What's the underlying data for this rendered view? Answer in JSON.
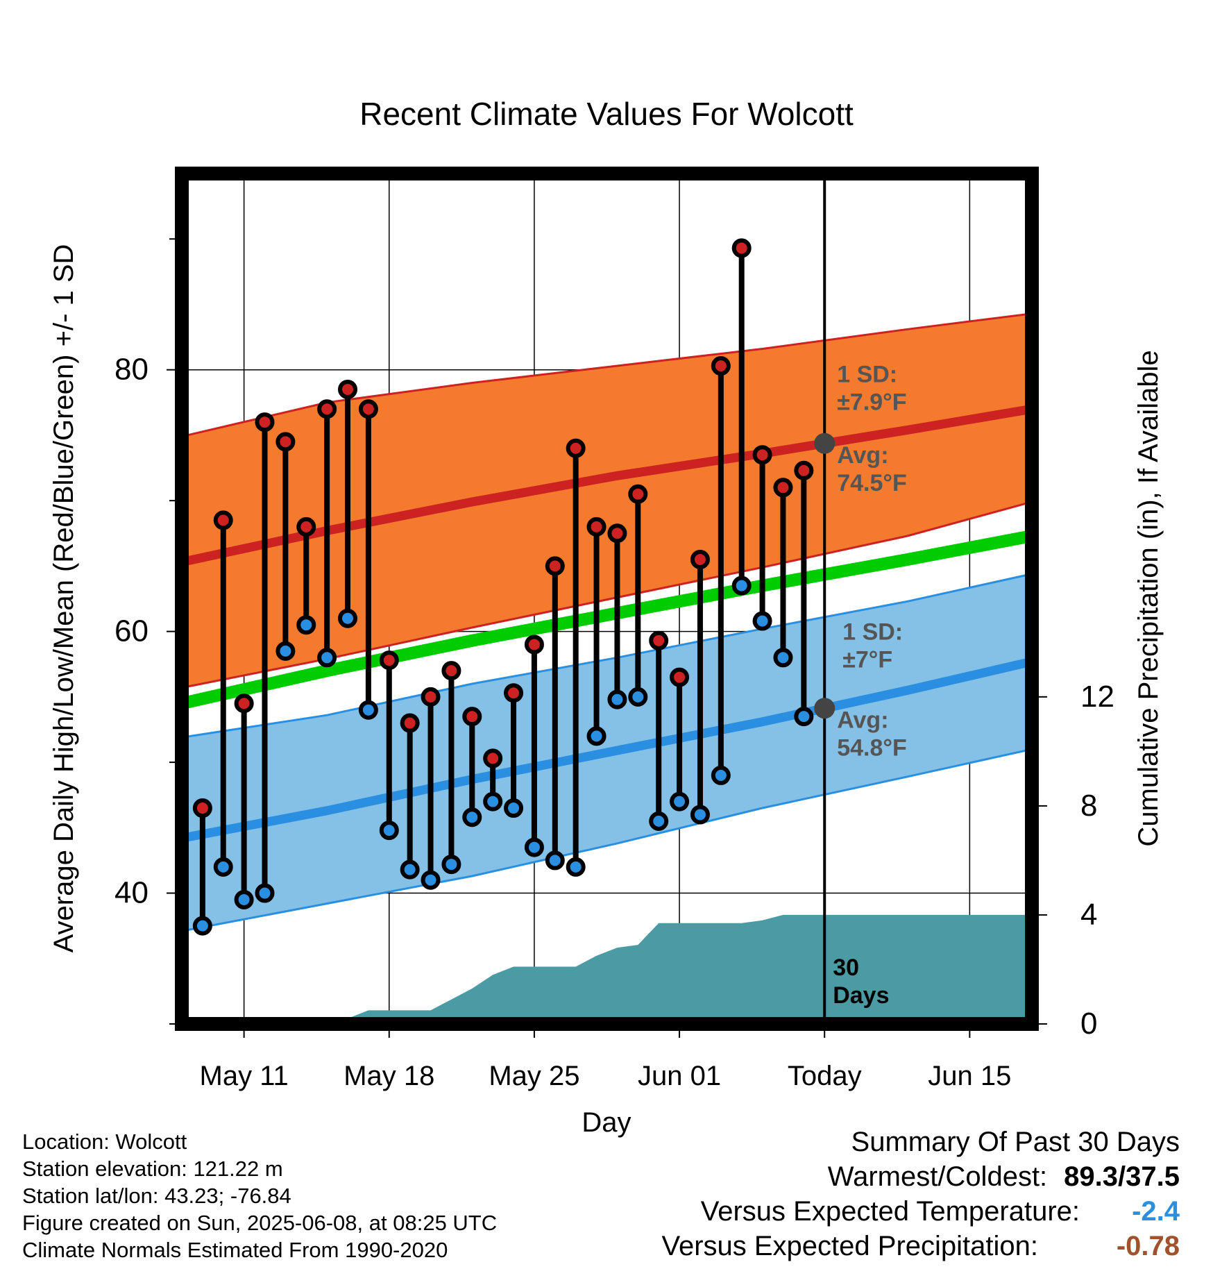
{
  "chart_data": {
    "type": "line",
    "title": "Recent Climate Values For Wolcott",
    "xlabel": "Day",
    "ylabel": "Average Daily High/Low/Mean (Red/Blue/Green) +/- 1 SD",
    "y2label": "Cumulative Precipitation (in), If Available",
    "xlim": [
      "2025-05-08",
      "2025-06-18"
    ],
    "ylim": [
      30,
      95
    ],
    "y2lim": [
      0,
      31.2
    ],
    "x_ticks": [
      {
        "date": "2025-05-11",
        "label": "May 11"
      },
      {
        "date": "2025-05-18",
        "label": "May 18"
      },
      {
        "date": "2025-05-25",
        "label": "May 25"
      },
      {
        "date": "2025-06-01",
        "label": "Jun 01"
      },
      {
        "date": "2025-06-08",
        "label": "Today"
      },
      {
        "date": "2025-06-15",
        "label": "Jun 15"
      }
    ],
    "y_ticks": [
      {
        "value": 40,
        "label": "40"
      },
      {
        "value": 60,
        "label": "60"
      },
      {
        "value": 80,
        "label": "80"
      }
    ],
    "y_minor_ticks": [
      30,
      50,
      70,
      90
    ],
    "y2_ticks": [
      {
        "value": 0,
        "label": "0"
      },
      {
        "value": 4,
        "label": "4"
      },
      {
        "value": 8,
        "label": "8"
      },
      {
        "value": 12,
        "label": "12"
      }
    ],
    "grid": true,
    "today": "2025-06-08",
    "dates": [
      "2025-05-09",
      "2025-05-10",
      "2025-05-11",
      "2025-05-12",
      "2025-05-13",
      "2025-05-14",
      "2025-05-15",
      "2025-05-16",
      "2025-05-17",
      "2025-05-18",
      "2025-05-19",
      "2025-05-20",
      "2025-05-21",
      "2025-05-22",
      "2025-05-23",
      "2025-05-24",
      "2025-05-25",
      "2025-05-26",
      "2025-05-27",
      "2025-05-28",
      "2025-05-29",
      "2025-05-30",
      "2025-05-31",
      "2025-06-01",
      "2025-06-02",
      "2025-06-03",
      "2025-06-04",
      "2025-06-05",
      "2025-06-06",
      "2025-06-07"
    ],
    "series": [
      {
        "name": "High",
        "color": "#cc2222",
        "values": [
          46.5,
          68.5,
          54.5,
          76.0,
          74.5,
          68.0,
          77.0,
          78.5,
          77.0,
          57.8,
          53.0,
          55.0,
          57.0,
          53.5,
          50.3,
          55.3,
          59.0,
          65.0,
          74.0,
          68.0,
          67.5,
          70.5,
          59.3,
          56.5,
          65.5,
          80.3,
          89.3,
          73.5,
          71.0,
          72.3
        ]
      },
      {
        "name": "Low",
        "color": "#2a8fe0",
        "values": [
          37.5,
          42.0,
          39.5,
          40.0,
          58.5,
          60.5,
          58.0,
          61.0,
          54.0,
          44.8,
          41.8,
          41.0,
          42.2,
          45.8,
          47.0,
          46.5,
          43.5,
          42.5,
          42.0,
          52.0,
          54.8,
          55.0,
          45.5,
          47.0,
          46.0,
          49.0,
          63.5,
          60.8,
          58.0,
          53.5
        ]
      }
    ],
    "normals": {
      "dates": [
        "2025-05-08",
        "2025-05-15",
        "2025-05-22",
        "2025-05-29",
        "2025-06-05",
        "2025-06-12",
        "2025-06-18"
      ],
      "high_mean": [
        65.3,
        67.7,
        69.9,
        71.9,
        73.6,
        75.4,
        77.0
      ],
      "high_upper": [
        74.9,
        77.5,
        79.0,
        80.3,
        81.6,
        83.1,
        84.3
      ],
      "high_lower": [
        55.7,
        57.9,
        60.3,
        62.6,
        64.9,
        67.3,
        69.9
      ],
      "mean": [
        54.5,
        57.0,
        59.3,
        61.4,
        63.5,
        65.5,
        67.3
      ],
      "low_mean": [
        44.2,
        46.3,
        48.7,
        50.9,
        53.1,
        55.5,
        57.7
      ],
      "low_upper": [
        51.9,
        53.6,
        56.0,
        58.0,
        60.2,
        62.3,
        64.4
      ],
      "low_lower": [
        37.1,
        39.2,
        41.3,
        43.8,
        46.5,
        48.9,
        51.0
      ]
    },
    "precip": {
      "color": "#4a9ba3",
      "dates": [
        "2025-05-08",
        "2025-05-15",
        "2025-05-16",
        "2025-05-17",
        "2025-05-20",
        "2025-05-21",
        "2025-05-22",
        "2025-05-23",
        "2025-05-24",
        "2025-05-27",
        "2025-05-28",
        "2025-05-29",
        "2025-05-30",
        "2025-05-31",
        "2025-06-04",
        "2025-06-05",
        "2025-06-06",
        "2025-06-18"
      ],
      "values": [
        0,
        0,
        0.2,
        0.5,
        0.5,
        0.9,
        1.3,
        1.8,
        2.1,
        2.1,
        2.5,
        2.8,
        2.9,
        3.7,
        3.7,
        3.8,
        4.0,
        4.0
      ]
    },
    "annotations": {
      "high_sd": "1 SD:\n±7.9°F",
      "high_avg": "Avg:\n74.5°F",
      "low_sd": "1 SD:\n±7°F",
      "low_avg": "Avg:\n54.8°F",
      "days": "30\nDays"
    },
    "colors": {
      "high_band": "#f47a2e",
      "high_line": "#cc2222",
      "low_band": "#85c1e6",
      "low_line": "#2a8fe0",
      "mean_line": "#00cc00",
      "annotation": "#555555",
      "avg_marker": "#444444"
    }
  },
  "info": {
    "location": "Location: Wolcott",
    "elevation": "Station elevation: 121.22 m",
    "latlon": "Station lat/lon: 43.23; -76.84",
    "created": "Figure created on Sun, 2025-06-08, at 08:25 UTC",
    "normals": "Climate Normals Estimated From 1990-2020"
  },
  "summary": {
    "title": "Summary Of Past 30 Days",
    "warmest_label": "Warmest/Coldest:",
    "warmest_value": "89.3/37.5",
    "temp_label": "Versus Expected Temperature:",
    "temp_value": "-2.4",
    "temp_color": "#2a8fe0",
    "precip_label": "Versus Expected Precipitation:",
    "precip_value": "-0.78",
    "precip_color": "#a0522d"
  }
}
